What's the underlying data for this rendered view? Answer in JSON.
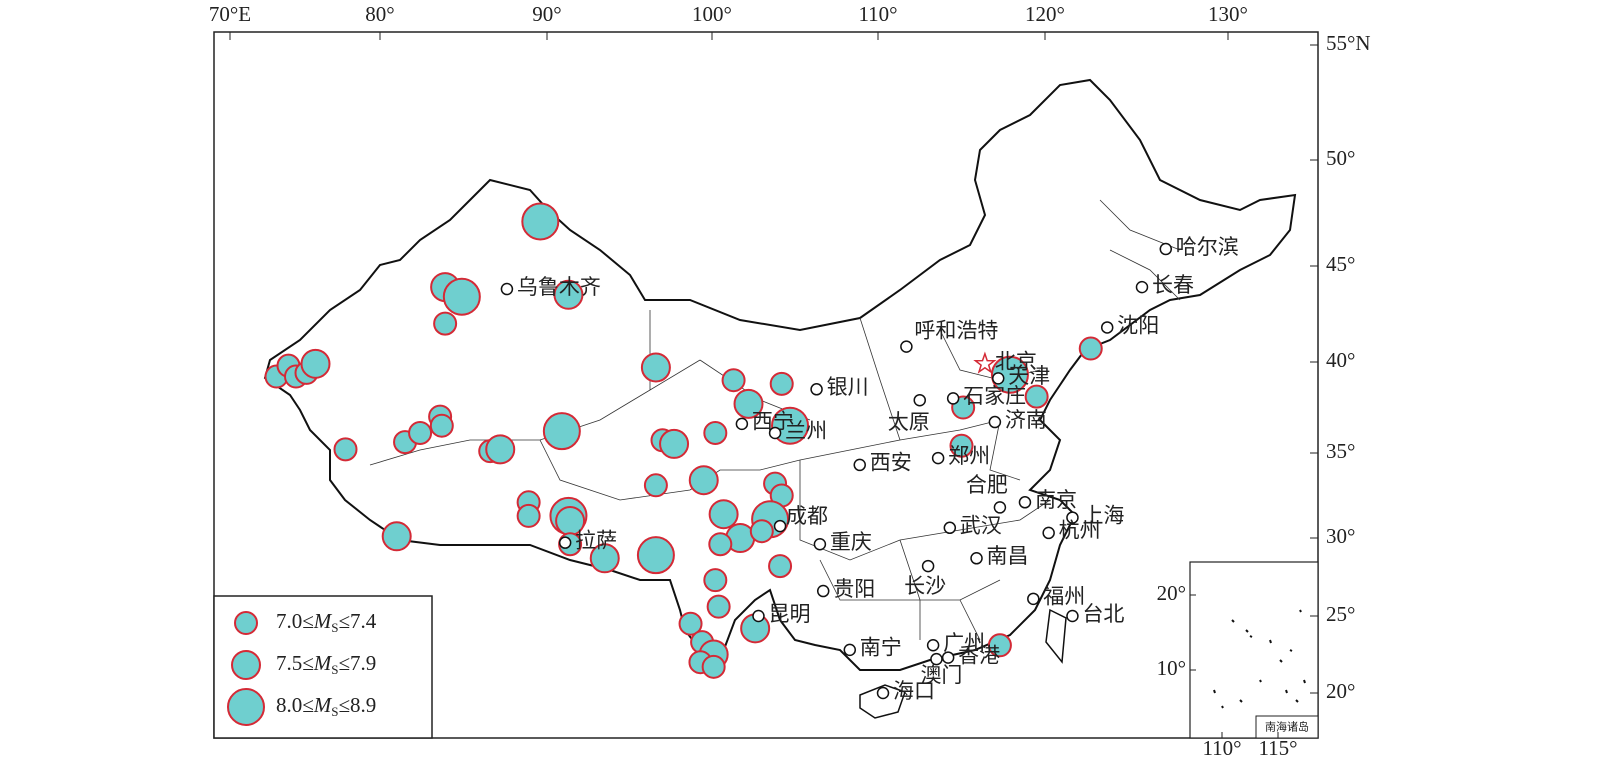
{
  "map": {
    "lon_ticks": [
      {
        "value": 70,
        "label": "70°E"
      },
      {
        "value": 80,
        "label": "80°"
      },
      {
        "value": 90,
        "label": "90°"
      },
      {
        "value": 100,
        "label": "100°"
      },
      {
        "value": 110,
        "label": "110°"
      },
      {
        "value": 120,
        "label": "120°"
      },
      {
        "value": 130,
        "label": "130°"
      }
    ],
    "lat_ticks": [
      {
        "value": 55,
        "label": "55°N"
      },
      {
        "value": 50,
        "label": "50°"
      },
      {
        "value": 45,
        "label": "45°"
      },
      {
        "value": 40,
        "label": "40°"
      },
      {
        "value": 35,
        "label": "35°"
      },
      {
        "value": 30,
        "label": "30°"
      },
      {
        "value": 25,
        "label": "25°"
      },
      {
        "value": 20,
        "label": "20°"
      }
    ],
    "cities": [
      {
        "name": "乌鲁木齐",
        "lon": 87.6,
        "lat": 43.8
      },
      {
        "name": "哈尔滨",
        "lon": 126.6,
        "lat": 45.8
      },
      {
        "name": "长春",
        "lon": 125.3,
        "lat": 43.9
      },
      {
        "name": "沈阳",
        "lon": 123.4,
        "lat": 41.8
      },
      {
        "name": "呼和浩特",
        "lon": 111.7,
        "lat": 40.8
      },
      {
        "name": "北京",
        "lon": 116.4,
        "lat": 39.9
      },
      {
        "name": "天津",
        "lon": 117.2,
        "lat": 39.1
      },
      {
        "name": "银川",
        "lon": 106.3,
        "lat": 38.5
      },
      {
        "name": "石家庄",
        "lon": 114.5,
        "lat": 38.0
      },
      {
        "name": "太原",
        "lon": 112.5,
        "lat": 37.9
      },
      {
        "name": "济南",
        "lon": 117.0,
        "lat": 36.7
      },
      {
        "name": "西宁",
        "lon": 101.8,
        "lat": 36.6
      },
      {
        "name": "兰州",
        "lon": 103.8,
        "lat": 36.1
      },
      {
        "name": "西安",
        "lon": 108.9,
        "lat": 34.3
      },
      {
        "name": "郑州",
        "lon": 113.6,
        "lat": 34.7
      },
      {
        "name": "合肥",
        "lon": 117.3,
        "lat": 31.8
      },
      {
        "name": "南京",
        "lon": 118.8,
        "lat": 32.1
      },
      {
        "name": "上海",
        "lon": 121.5,
        "lat": 31.2
      },
      {
        "name": "成都",
        "lon": 104.1,
        "lat": 30.7
      },
      {
        "name": "武汉",
        "lon": 114.3,
        "lat": 30.6
      },
      {
        "name": "杭州",
        "lon": 120.2,
        "lat": 30.3
      },
      {
        "name": "重庆",
        "lon": 106.5,
        "lat": 29.6
      },
      {
        "name": "拉萨",
        "lon": 91.1,
        "lat": 29.7
      },
      {
        "name": "南昌",
        "lon": 115.9,
        "lat": 28.7
      },
      {
        "name": "长沙",
        "lon": 113.0,
        "lat": 28.2
      },
      {
        "name": "贵阳",
        "lon": 106.7,
        "lat": 26.6
      },
      {
        "name": "福州",
        "lon": 119.3,
        "lat": 26.1
      },
      {
        "name": "昆明",
        "lon": 102.8,
        "lat": 25.0
      },
      {
        "name": "台北",
        "lon": 121.5,
        "lat": 25.0
      },
      {
        "name": "南宁",
        "lon": 108.3,
        "lat": 22.8
      },
      {
        "name": "广州",
        "lon": 113.3,
        "lat": 23.1
      },
      {
        "name": "香港",
        "lon": 114.2,
        "lat": 22.3
      },
      {
        "name": "澳门",
        "lon": 113.5,
        "lat": 22.2
      },
      {
        "name": "海口",
        "lon": 110.3,
        "lat": 20.0
      }
    ],
    "earthquakes": [
      {
        "lon": 89.6,
        "lat": 47.1,
        "ms_min": 8.0
      },
      {
        "lon": 83.9,
        "lat": 43.9,
        "ms_min": 7.5
      },
      {
        "lon": 84.9,
        "lat": 43.4,
        "ms_min": 8.0
      },
      {
        "lon": 83.9,
        "lat": 42.0,
        "ms_min": 7.0
      },
      {
        "lon": 91.3,
        "lat": 43.5,
        "ms_min": 7.5
      },
      {
        "lon": 73.1,
        "lat": 39.2,
        "ms_min": 7.0
      },
      {
        "lon": 73.9,
        "lat": 39.8,
        "ms_min": 7.0
      },
      {
        "lon": 74.4,
        "lat": 39.2,
        "ms_min": 7.0
      },
      {
        "lon": 75.1,
        "lat": 39.4,
        "ms_min": 7.0
      },
      {
        "lon": 75.7,
        "lat": 39.9,
        "ms_min": 7.5
      },
      {
        "lon": 77.7,
        "lat": 35.2,
        "ms_min": 7.0
      },
      {
        "lon": 81.5,
        "lat": 35.6,
        "ms_min": 7.0
      },
      {
        "lon": 82.4,
        "lat": 36.1,
        "ms_min": 7.0
      },
      {
        "lon": 83.6,
        "lat": 37.0,
        "ms_min": 7.0
      },
      {
        "lon": 83.7,
        "lat": 36.5,
        "ms_min": 7.0
      },
      {
        "lon": 86.6,
        "lat": 35.1,
        "ms_min": 7.0
      },
      {
        "lon": 87.2,
        "lat": 35.2,
        "ms_min": 7.5
      },
      {
        "lon": 90.9,
        "lat": 36.2,
        "ms_min": 8.0
      },
      {
        "lon": 96.6,
        "lat": 39.7,
        "ms_min": 7.5
      },
      {
        "lon": 101.3,
        "lat": 39.0,
        "ms_min": 7.0
      },
      {
        "lon": 104.2,
        "lat": 38.8,
        "ms_min": 7.0
      },
      {
        "lon": 102.2,
        "lat": 37.7,
        "ms_min": 7.5
      },
      {
        "lon": 104.7,
        "lat": 36.5,
        "ms_min": 8.0
      },
      {
        "lon": 97.0,
        "lat": 35.7,
        "ms_min": 7.0
      },
      {
        "lon": 97.7,
        "lat": 35.5,
        "ms_min": 7.5
      },
      {
        "lon": 100.2,
        "lat": 36.1,
        "ms_min": 7.0
      },
      {
        "lon": 96.6,
        "lat": 33.1,
        "ms_min": 7.0
      },
      {
        "lon": 99.5,
        "lat": 33.4,
        "ms_min": 7.5
      },
      {
        "lon": 103.8,
        "lat": 33.2,
        "ms_min": 7.0
      },
      {
        "lon": 104.2,
        "lat": 32.5,
        "ms_min": 7.0
      },
      {
        "lon": 88.9,
        "lat": 32.1,
        "ms_min": 7.0
      },
      {
        "lon": 88.9,
        "lat": 31.3,
        "ms_min": 7.0
      },
      {
        "lon": 91.3,
        "lat": 31.3,
        "ms_min": 8.0
      },
      {
        "lon": 91.4,
        "lat": 31.0,
        "ms_min": 7.5
      },
      {
        "lon": 91.4,
        "lat": 29.6,
        "ms_min": 7.0
      },
      {
        "lon": 93.5,
        "lat": 28.7,
        "ms_min": 7.5
      },
      {
        "lon": 96.6,
        "lat": 28.9,
        "ms_min": 8.0
      },
      {
        "lon": 81.0,
        "lat": 30.1,
        "ms_min": 7.5
      },
      {
        "lon": 100.7,
        "lat": 31.4,
        "ms_min": 7.5
      },
      {
        "lon": 103.5,
        "lat": 31.1,
        "ms_min": 8.0
      },
      {
        "lon": 101.7,
        "lat": 30.0,
        "ms_min": 7.5
      },
      {
        "lon": 100.5,
        "lat": 29.6,
        "ms_min": 7.0
      },
      {
        "lon": 103.0,
        "lat": 30.4,
        "ms_min": 7.0
      },
      {
        "lon": 104.1,
        "lat": 28.2,
        "ms_min": 7.0
      },
      {
        "lon": 100.2,
        "lat": 27.3,
        "ms_min": 7.0
      },
      {
        "lon": 100.4,
        "lat": 25.6,
        "ms_min": 7.0
      },
      {
        "lon": 102.6,
        "lat": 24.2,
        "ms_min": 7.5
      },
      {
        "lon": 98.7,
        "lat": 24.5,
        "ms_min": 7.0
      },
      {
        "lon": 99.4,
        "lat": 23.3,
        "ms_min": 7.0
      },
      {
        "lon": 100.1,
        "lat": 22.5,
        "ms_min": 7.5
      },
      {
        "lon": 99.3,
        "lat": 22.0,
        "ms_min": 7.0
      },
      {
        "lon": 100.1,
        "lat": 21.7,
        "ms_min": 7.0
      },
      {
        "lon": 115.1,
        "lat": 37.5,
        "ms_min": 7.0
      },
      {
        "lon": 115.0,
        "lat": 35.4,
        "ms_min": 7.0
      },
      {
        "lon": 117.9,
        "lat": 39.3,
        "ms_min": 8.0
      },
      {
        "lon": 119.5,
        "lat": 38.1,
        "ms_min": 7.0
      },
      {
        "lon": 122.5,
        "lat": 40.7,
        "ms_min": 7.0
      },
      {
        "lon": 117.3,
        "lat": 23.1,
        "ms_min": 7.0
      }
    ],
    "legend": [
      {
        "low": "7.0≤",
        "symbol": "M",
        "sub": "S",
        "high": "≤7.4",
        "ms_min": 7.0
      },
      {
        "low": "7.5≤",
        "symbol": "M",
        "sub": "S",
        "high": "≤7.9",
        "ms_min": 7.5
      },
      {
        "low": "8.0≤",
        "symbol": "M",
        "sub": "S",
        "high": "≤8.9",
        "ms_min": 8.0
      }
    ],
    "inset": {
      "title": "南海诸岛",
      "lat_ticks": [
        {
          "value": 20,
          "label": "20°"
        },
        {
          "value": 10,
          "label": "10°"
        }
      ],
      "lon_ticks": [
        {
          "value": 110,
          "label": "110°"
        },
        {
          "value": 115,
          "label": "115°"
        }
      ]
    }
  }
}
